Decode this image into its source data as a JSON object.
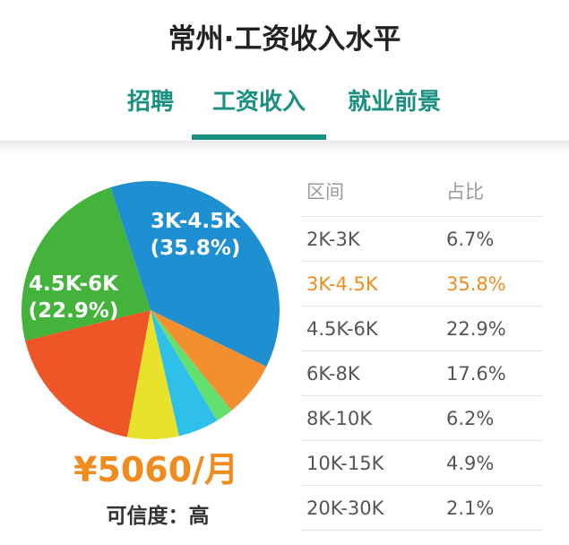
{
  "page": {
    "title": "常州·工资收入水平"
  },
  "tabs": [
    {
      "label": "招聘",
      "active": false
    },
    {
      "label": "工资收入",
      "active": true
    },
    {
      "label": "就业前景",
      "active": false
    }
  ],
  "colors": {
    "accent": "#1a9080",
    "highlight": "#f08b1e"
  },
  "summary": {
    "average_salary": "¥5060/月",
    "credibility": "可信度：高"
  },
  "table": {
    "headers": [
      "区间",
      "占比"
    ],
    "highlighted_index": 1,
    "rows": [
      {
        "range": "2K-3K",
        "share": "6.7%"
      },
      {
        "range": "3K-4.5K",
        "share": "35.8%"
      },
      {
        "range": "4.5K-6K",
        "share": "22.9%"
      },
      {
        "range": "6K-8K",
        "share": "17.6%"
      },
      {
        "range": "8K-10K",
        "share": "6.2%"
      },
      {
        "range": "10K-15K",
        "share": "4.9%"
      },
      {
        "range": "20K-30K",
        "share": "2.1%"
      }
    ]
  },
  "chart_data": {
    "type": "pie",
    "labels": [
      "2K-3K",
      "3K-4.5K",
      "4.5K-6K",
      "6K-8K",
      "8K-10K",
      "10K-15K",
      "20K-30K"
    ],
    "values": [
      6.7,
      35.8,
      22.9,
      17.6,
      6.2,
      4.9,
      2.1
    ],
    "colors": [
      "#f2902f",
      "#1e8fd0",
      "#43b33c",
      "#ee5527",
      "#e8e22a",
      "#2ec0e8",
      "#64e070"
    ],
    "slice_labels": [
      {
        "label": "3K-4.5K",
        "pct": "(35.8%)"
      },
      {
        "label": "4.5K-6K",
        "pct": "(22.9%)"
      }
    ]
  }
}
